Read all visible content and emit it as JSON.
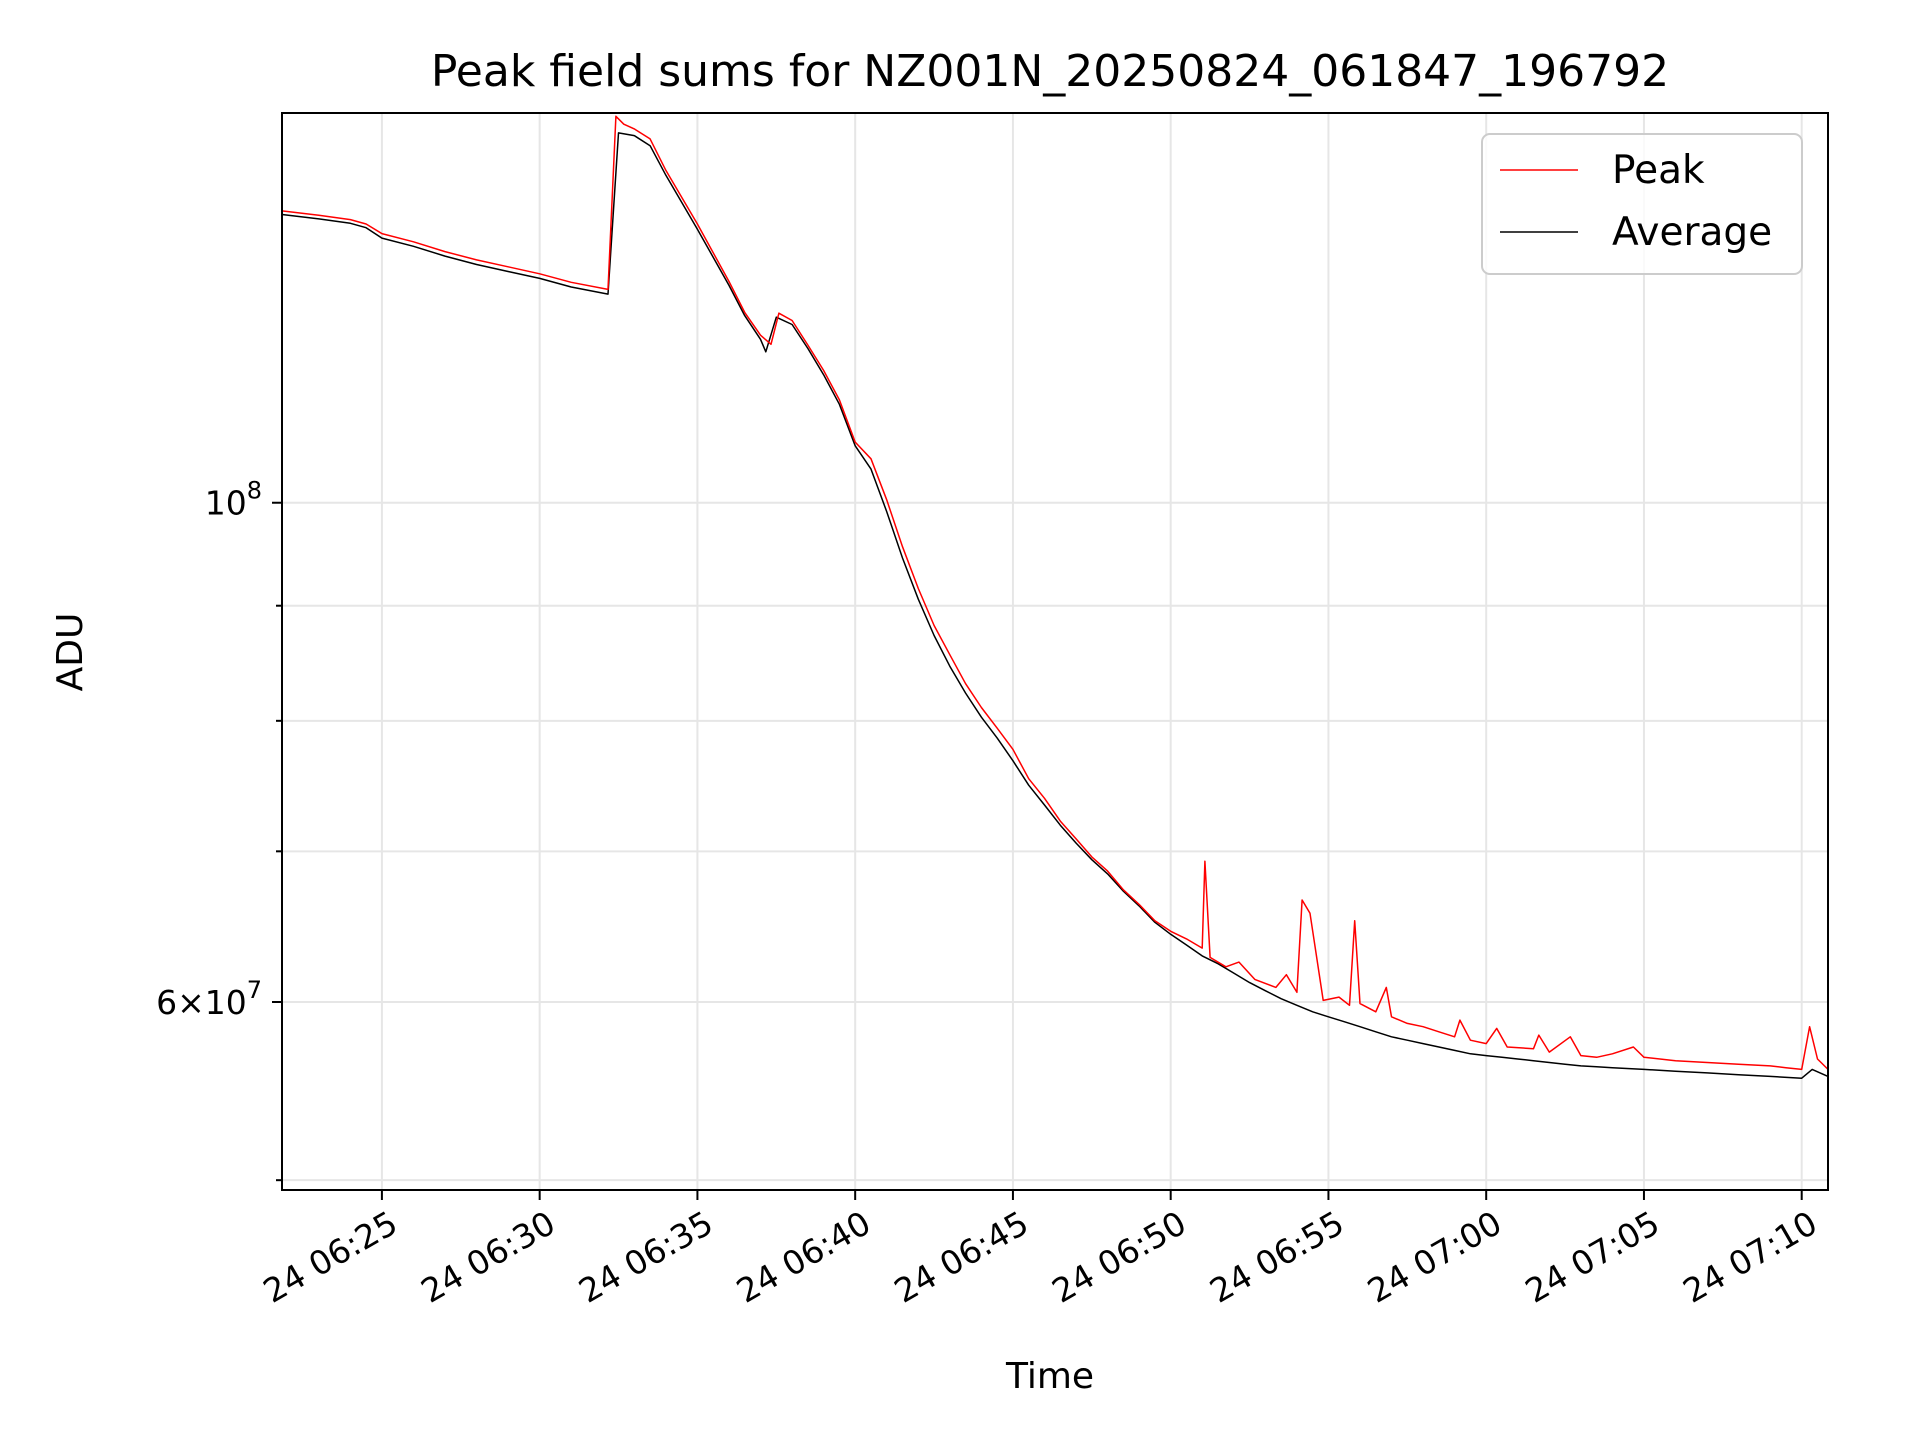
{
  "chart_data": {
    "type": "line",
    "title": "Peak field sums for NZ001N_20250824_061847_196792",
    "xlabel": "Time",
    "ylabel": "ADU",
    "y_scale": "log",
    "xlim": [
      "2025-08-24 06:21:50",
      "2025-08-24 07:10:50"
    ],
    "ylim": [
      49500000,
      149000000
    ],
    "grid": true,
    "legend_position": "top-right",
    "x_ticks": [
      {
        "t": "2025-08-24 06:25",
        "label": "24 06:25"
      },
      {
        "t": "2025-08-24 06:30",
        "label": "24 06:30"
      },
      {
        "t": "2025-08-24 06:35",
        "label": "24 06:35"
      },
      {
        "t": "2025-08-24 06:40",
        "label": "24 06:40"
      },
      {
        "t": "2025-08-24 06:45",
        "label": "24 06:45"
      },
      {
        "t": "2025-08-24 06:50",
        "label": "24 06:50"
      },
      {
        "t": "2025-08-24 06:55",
        "label": "24 06:55"
      },
      {
        "t": "2025-08-24 07:00",
        "label": "24 07:00"
      },
      {
        "t": "2025-08-24 07:05",
        "label": "24 07:05"
      },
      {
        "t": "2025-08-24 07:10",
        "label": "24 07:10"
      }
    ],
    "y_major_ticks": [
      {
        "value": 100000000,
        "base": "10",
        "exp": "8"
      },
      {
        "value": 60000000,
        "mantissa": "6",
        "base": "10",
        "exp": "7"
      }
    ],
    "y_minor_ticks": [
      50000000,
      70000000,
      80000000,
      90000000,
      200000000
    ],
    "series": [
      {
        "name": "Peak",
        "color": "#ff0000",
        "points": [
          [
            "06:21:50",
            134800000
          ],
          [
            "06:23:00",
            134200000
          ],
          [
            "06:24:00",
            133600000
          ],
          [
            "06:24:30",
            133000000
          ],
          [
            "06:25:00",
            131700000
          ],
          [
            "06:26:00",
            130600000
          ],
          [
            "06:27:00",
            129300000
          ],
          [
            "06:28:00",
            128200000
          ],
          [
            "06:29:00",
            127300000
          ],
          [
            "06:30:00",
            126400000
          ],
          [
            "06:31:00",
            125300000
          ],
          [
            "06:32:10",
            124400000
          ],
          [
            "06:32:25",
            148500000
          ],
          [
            "06:32:40",
            147300000
          ],
          [
            "06:33:00",
            146600000
          ],
          [
            "06:33:30",
            145100000
          ],
          [
            "06:34:00",
            140500000
          ],
          [
            "06:35:00",
            133000000
          ],
          [
            "06:36:00",
            125400000
          ],
          [
            "06:36:30",
            121500000
          ],
          [
            "06:37:00",
            118700000
          ],
          [
            "06:37:20",
            117600000
          ],
          [
            "06:37:35",
            121400000
          ],
          [
            "06:38:00",
            120500000
          ],
          [
            "06:38:30",
            117500000
          ],
          [
            "06:39:00",
            114500000
          ],
          [
            "06:39:30",
            111100000
          ],
          [
            "06:40:00",
            106400000
          ],
          [
            "06:40:30",
            104600000
          ],
          [
            "06:41:00",
            100300000
          ],
          [
            "06:41:30",
            95600000
          ],
          [
            "06:42:00",
            91600000
          ],
          [
            "06:42:30",
            88200000
          ],
          [
            "06:43:00",
            85600000
          ],
          [
            "06:43:30",
            83100000
          ],
          [
            "06:44:00",
            81100000
          ],
          [
            "06:44:30",
            79400000
          ],
          [
            "06:45:00",
            77700000
          ],
          [
            "06:45:30",
            75400000
          ],
          [
            "06:46:00",
            73900000
          ],
          [
            "06:46:30",
            72200000
          ],
          [
            "06:47:00",
            70900000
          ],
          [
            "06:47:30",
            69600000
          ],
          [
            "06:48:00",
            68600000
          ],
          [
            "06:48:30",
            67300000
          ],
          [
            "06:49:00",
            66300000
          ],
          [
            "06:49:30",
            65200000
          ],
          [
            "06:50:00",
            64500000
          ],
          [
            "06:50:30",
            64000000
          ],
          [
            "06:51:00",
            63400000
          ],
          [
            "06:51:05",
            69300000
          ],
          [
            "06:51:15",
            62800000
          ],
          [
            "06:51:45",
            62200000
          ],
          [
            "06:52:10",
            62500000
          ],
          [
            "06:52:40",
            61400000
          ],
          [
            "06:53:20",
            60900000
          ],
          [
            "06:53:40",
            61700000
          ],
          [
            "06:54:00",
            60600000
          ],
          [
            "06:54:10",
            66600000
          ],
          [
            "06:54:25",
            65700000
          ],
          [
            "06:54:50",
            60100000
          ],
          [
            "06:55:20",
            60300000
          ],
          [
            "06:55:40",
            59800000
          ],
          [
            "06:55:50",
            65200000
          ],
          [
            "06:56:00",
            59900000
          ],
          [
            "06:56:30",
            59400000
          ],
          [
            "06:56:50",
            60900000
          ],
          [
            "06:57:00",
            59100000
          ],
          [
            "06:57:30",
            58700000
          ],
          [
            "06:58:00",
            58500000
          ],
          [
            "06:58:30",
            58200000
          ],
          [
            "06:59:00",
            57900000
          ],
          [
            "06:59:10",
            58900000
          ],
          [
            "06:59:30",
            57700000
          ],
          [
            "07:00:00",
            57500000
          ],
          [
            "07:00:20",
            58400000
          ],
          [
            "07:00:40",
            57300000
          ],
          [
            "07:01:30",
            57200000
          ],
          [
            "07:01:40",
            58000000
          ],
          [
            "07:02:00",
            57000000
          ],
          [
            "07:02:40",
            57900000
          ],
          [
            "07:03:00",
            56800000
          ],
          [
            "07:03:30",
            56700000
          ],
          [
            "07:04:00",
            56900000
          ],
          [
            "07:04:40",
            57300000
          ],
          [
            "07:05:00",
            56700000
          ],
          [
            "07:06:00",
            56500000
          ],
          [
            "07:07:00",
            56400000
          ],
          [
            "07:08:00",
            56300000
          ],
          [
            "07:09:00",
            56200000
          ],
          [
            "07:09:30",
            56100000
          ],
          [
            "07:10:00",
            56000000
          ],
          [
            "07:10:15",
            58500000
          ],
          [
            "07:10:30",
            56600000
          ],
          [
            "07:10:50",
            56000000
          ]
        ]
      },
      {
        "name": "Average",
        "color": "#000000",
        "points": [
          [
            "06:21:50",
            134300000
          ],
          [
            "06:23:00",
            133700000
          ],
          [
            "06:24:00",
            133100000
          ],
          [
            "06:24:30",
            132500000
          ],
          [
            "06:25:00",
            131100000
          ],
          [
            "06:26:00",
            130000000
          ],
          [
            "06:27:00",
            128700000
          ],
          [
            "06:28:00",
            127600000
          ],
          [
            "06:29:00",
            126700000
          ],
          [
            "06:30:00",
            125800000
          ],
          [
            "06:31:00",
            124700000
          ],
          [
            "06:32:10",
            123800000
          ],
          [
            "06:32:30",
            146000000
          ],
          [
            "06:33:00",
            145600000
          ],
          [
            "06:33:30",
            144100000
          ],
          [
            "06:34:00",
            139800000
          ],
          [
            "06:35:00",
            132300000
          ],
          [
            "06:36:00",
            124900000
          ],
          [
            "06:36:30",
            121100000
          ],
          [
            "06:37:00",
            118200000
          ],
          [
            "06:37:10",
            116700000
          ],
          [
            "06:37:30",
            120900000
          ],
          [
            "06:38:00",
            120000000
          ],
          [
            "06:38:30",
            117100000
          ],
          [
            "06:39:00",
            114000000
          ],
          [
            "06:39:30",
            110600000
          ],
          [
            "06:40:00",
            106000000
          ],
          [
            "06:40:30",
            103500000
          ],
          [
            "06:41:00",
            99100000
          ],
          [
            "06:41:30",
            94500000
          ],
          [
            "06:42:00",
            90600000
          ],
          [
            "06:42:30",
            87300000
          ],
          [
            "06:43:00",
            84600000
          ],
          [
            "06:43:30",
            82300000
          ],
          [
            "06:44:00",
            80300000
          ],
          [
            "06:44:30",
            78600000
          ],
          [
            "06:45:00",
            76800000
          ],
          [
            "06:45:30",
            74900000
          ],
          [
            "06:46:00",
            73400000
          ],
          [
            "06:46:30",
            71900000
          ],
          [
            "06:47:00",
            70600000
          ],
          [
            "06:47:30",
            69400000
          ],
          [
            "06:48:00",
            68400000
          ],
          [
            "06:48:30",
            67200000
          ],
          [
            "06:49:00",
            66200000
          ],
          [
            "06:49:30",
            65100000
          ],
          [
            "06:50:00",
            64300000
          ],
          [
            "06:50:30",
            63600000
          ],
          [
            "06:51:00",
            62900000
          ],
          [
            "06:51:30",
            62400000
          ],
          [
            "06:52:00",
            61800000
          ],
          [
            "06:52:30",
            61200000
          ],
          [
            "06:53:00",
            60700000
          ],
          [
            "06:53:30",
            60200000
          ],
          [
            "06:54:00",
            59800000
          ],
          [
            "06:54:30",
            59400000
          ],
          [
            "06:55:00",
            59100000
          ],
          [
            "06:55:30",
            58800000
          ],
          [
            "06:56:00",
            58500000
          ],
          [
            "06:56:30",
            58200000
          ],
          [
            "06:57:00",
            57900000
          ],
          [
            "06:57:30",
            57700000
          ],
          [
            "06:58:00",
            57500000
          ],
          [
            "06:58:30",
            57300000
          ],
          [
            "06:59:00",
            57100000
          ],
          [
            "06:59:30",
            56900000
          ],
          [
            "07:00:00",
            56800000
          ],
          [
            "07:00:30",
            56700000
          ],
          [
            "07:01:00",
            56600000
          ],
          [
            "07:01:30",
            56500000
          ],
          [
            "07:02:00",
            56400000
          ],
          [
            "07:02:30",
            56300000
          ],
          [
            "07:03:00",
            56200000
          ],
          [
            "07:03:30",
            56150000
          ],
          [
            "07:04:00",
            56100000
          ],
          [
            "07:05:00",
            56000000
          ],
          [
            "07:06:00",
            55900000
          ],
          [
            "07:07:00",
            55800000
          ],
          [
            "07:08:00",
            55700000
          ],
          [
            "07:09:00",
            55600000
          ],
          [
            "07:10:00",
            55500000
          ],
          [
            "07:10:20",
            56000000
          ],
          [
            "07:10:50",
            55600000
          ]
        ]
      }
    ]
  }
}
